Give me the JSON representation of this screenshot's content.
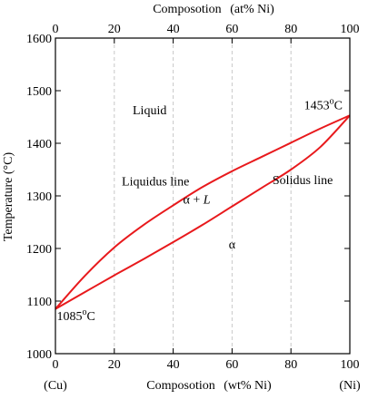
{
  "chart_data": {
    "type": "line",
    "title": "",
    "xlabel": "Composotion",
    "xlabel_unit": "(wt% Ni)",
    "x2label": "Composotion",
    "x2label_unit": "(at% Ni)",
    "ylabel": "Temperature (°C)",
    "xlim": [
      0,
      100
    ],
    "ylim": [
      1000,
      1600
    ],
    "x_ticks": [
      0,
      20,
      40,
      60,
      80,
      100
    ],
    "x2_ticks": [
      0,
      20,
      40,
      60,
      80,
      100
    ],
    "y_ticks": [
      1000,
      1100,
      1200,
      1300,
      1400,
      1500,
      1600
    ],
    "x_end_labels": {
      "left": "(Cu)",
      "right": "(Ni)"
    },
    "grid": true,
    "grid_style": "dashed vertical at x ticks",
    "series": [
      {
        "name": "Liquidus line",
        "color": "#e8191c",
        "x": [
          0,
          10,
          20,
          30,
          40,
          50,
          60,
          70,
          80,
          90,
          100
        ],
        "y": [
          1085,
          1148,
          1202,
          1245,
          1282,
          1317,
          1347,
          1374,
          1401,
          1428,
          1453
        ]
      },
      {
        "name": "Solidus line",
        "color": "#e8191c",
        "x": [
          0,
          10,
          20,
          30,
          40,
          50,
          60,
          70,
          80,
          90,
          100
        ],
        "y": [
          1085,
          1117,
          1149,
          1180,
          1212,
          1245,
          1280,
          1315,
          1350,
          1393,
          1453
        ]
      }
    ],
    "annotations": [
      {
        "text": "Liquid",
        "x": 32,
        "y": 1455
      },
      {
        "text": "1453",
        "sup": "o",
        "suffix": "C",
        "x": 91,
        "y": 1465
      },
      {
        "text": "Liquidus line",
        "x": 34,
        "y": 1320
      },
      {
        "text": "Solidus line",
        "x": 84,
        "y": 1322
      },
      {
        "text": "α + L",
        "x": 48,
        "y": 1285
      },
      {
        "text": "α",
        "x": 60,
        "y": 1200
      },
      {
        "text": "1085",
        "sup": "o",
        "suffix": "C",
        "x": 7,
        "y": 1064
      }
    ]
  }
}
